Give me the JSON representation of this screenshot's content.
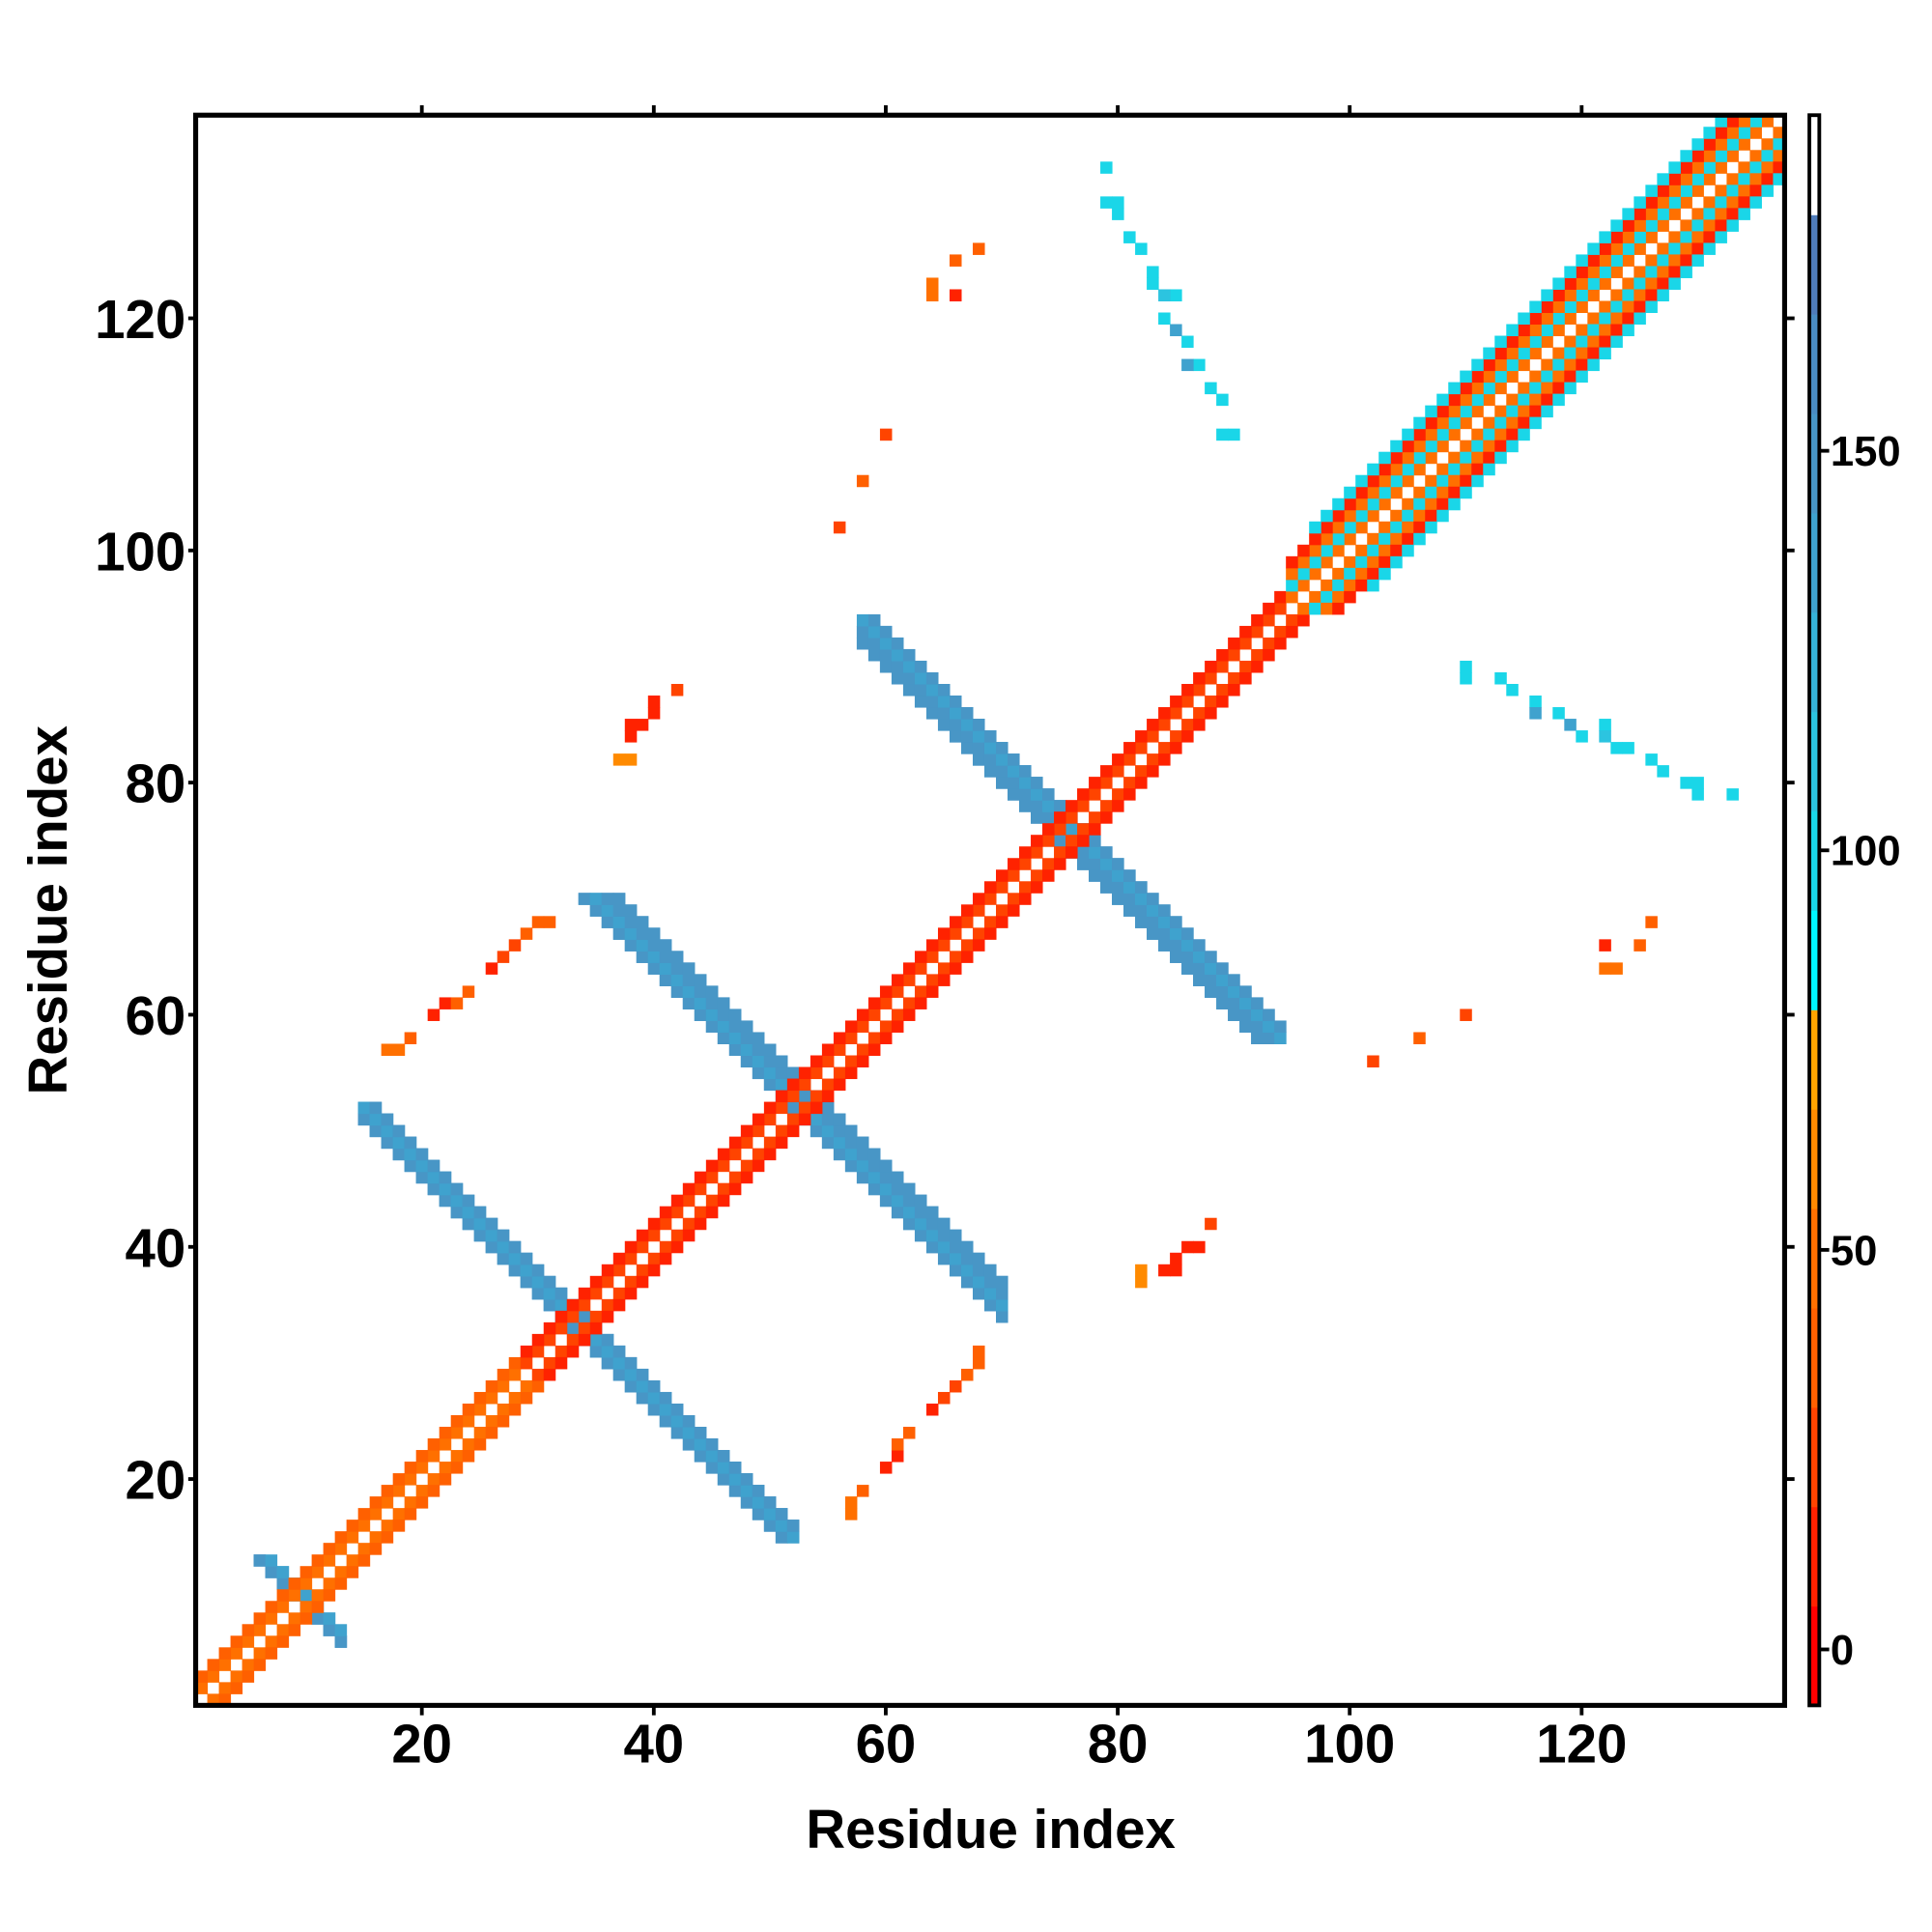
{
  "chart_data": {
    "type": "heatmap",
    "title": "",
    "xlabel": "Residue index",
    "ylabel": "Residue index",
    "xlim": [
      0.5,
      137.5
    ],
    "ylim": [
      0.5,
      137.5
    ],
    "x_ticks": [
      "20",
      "40",
      "60",
      "80",
      "100",
      "120"
    ],
    "y_ticks": [
      "20",
      "40",
      "60",
      "80",
      "100",
      "120"
    ],
    "grid": false,
    "symmetric": true,
    "colorbar": {
      "range": [
        -7,
        192
      ],
      "ticks": [
        "0",
        "50",
        "100",
        "150"
      ],
      "colors": [
        "#ff0000",
        "#ff2200",
        "#ff4400",
        "#ff6000",
        "#ff7000",
        "#ff8a00",
        "#ffa500",
        "#00f5ff",
        "#1ad6e8",
        "#2cc4e0",
        "#36b2d8",
        "#3fa2ce",
        "#4896c6",
        "#4a8cc2",
        "#4f7cba",
        "#ffffff"
      ]
    },
    "diagonal_runs": [
      {
        "offset": 1,
        "from": 1,
        "to": 28,
        "value": 45
      },
      {
        "offset": 2,
        "from": 1,
        "to": 28,
        "value": 38
      },
      {
        "offset": 1,
        "from": 29,
        "to": 94,
        "value": 20
      },
      {
        "offset": 2,
        "from": 29,
        "to": 94,
        "value": 8
      },
      {
        "offset": 1,
        "from": 95,
        "to": 136,
        "value": 45
      },
      {
        "offset": 2,
        "from": 95,
        "to": 135,
        "value": 95
      },
      {
        "offset": 3,
        "from": 95,
        "to": 134,
        "value": 45
      },
      {
        "offset": 4,
        "from": 95,
        "to": 133,
        "value": 15
      },
      {
        "offset": 5,
        "from": 97,
        "to": 132,
        "value": 95
      }
    ],
    "antidiagonal_runs": [
      {
        "sum": 19,
        "from": 6,
        "to": 13,
        "value": 150
      },
      {
        "sum": 20,
        "from": 7,
        "to": 12,
        "value": 130
      },
      {
        "sum": 66,
        "from": 15,
        "to": 51,
        "value": 150
      },
      {
        "sum": 67,
        "from": 15,
        "to": 52,
        "value": 140
      },
      {
        "sum": 68,
        "from": 16,
        "to": 52,
        "value": 150
      },
      {
        "sum": 104,
        "from": 34,
        "to": 70,
        "value": 150
      },
      {
        "sum": 105,
        "from": 35,
        "to": 70,
        "value": 140
      },
      {
        "sum": 106,
        "from": 36,
        "to": 70,
        "value": 150
      },
      {
        "sum": 107,
        "from": 37,
        "to": 70,
        "value": 150
      },
      {
        "sum": 150,
        "from": 58,
        "to": 92,
        "value": 150
      },
      {
        "sum": 151,
        "from": 58,
        "to": 93,
        "value": 150
      },
      {
        "sum": 152,
        "from": 59,
        "to": 94,
        "value": 140
      },
      {
        "sum": 153,
        "from": 60,
        "to": 94,
        "value": 150
      }
    ],
    "cells": [
      [
        57,
        17,
        45
      ],
      [
        57,
        18,
        45
      ],
      [
        58,
        19,
        40
      ],
      [
        60,
        21,
        15
      ],
      [
        61,
        22,
        15
      ],
      [
        61,
        23,
        40
      ],
      [
        62,
        24,
        40
      ],
      [
        64,
        26,
        15
      ],
      [
        65,
        27,
        20
      ],
      [
        66,
        28,
        30
      ],
      [
        67,
        29,
        40
      ],
      [
        68,
        30,
        40
      ],
      [
        68,
        31,
        40
      ],
      [
        82,
        37,
        60
      ],
      [
        82,
        38,
        60
      ],
      [
        84,
        38,
        10
      ],
      [
        85,
        38,
        10
      ],
      [
        85,
        39,
        10
      ],
      [
        86,
        40,
        10
      ],
      [
        87,
        40,
        10
      ],
      [
        88,
        42,
        30
      ],
      [
        102,
        56,
        20
      ],
      [
        106,
        58,
        40
      ],
      [
        110,
        60,
        30
      ],
      [
        122,
        64,
        45
      ],
      [
        123,
        64,
        45
      ],
      [
        122,
        66,
        15
      ],
      [
        125,
        66,
        40
      ],
      [
        126,
        68,
        40
      ],
      [
        110,
        90,
        100
      ],
      [
        110,
        89,
        100
      ],
      [
        113,
        89,
        100
      ],
      [
        114,
        88,
        100
      ],
      [
        116,
        87,
        100
      ],
      [
        116,
        86,
        140
      ],
      [
        118,
        86,
        100
      ],
      [
        119,
        85,
        130
      ],
      [
        120,
        84,
        100
      ],
      [
        122,
        85,
        100
      ],
      [
        122,
        84,
        110
      ],
      [
        123,
        83,
        100
      ],
      [
        124,
        83,
        100
      ],
      [
        126,
        82,
        100
      ],
      [
        127,
        81,
        100
      ],
      [
        129,
        80,
        100
      ],
      [
        130,
        80,
        100
      ],
      [
        130,
        79,
        100
      ],
      [
        133,
        79,
        100
      ]
    ]
  }
}
